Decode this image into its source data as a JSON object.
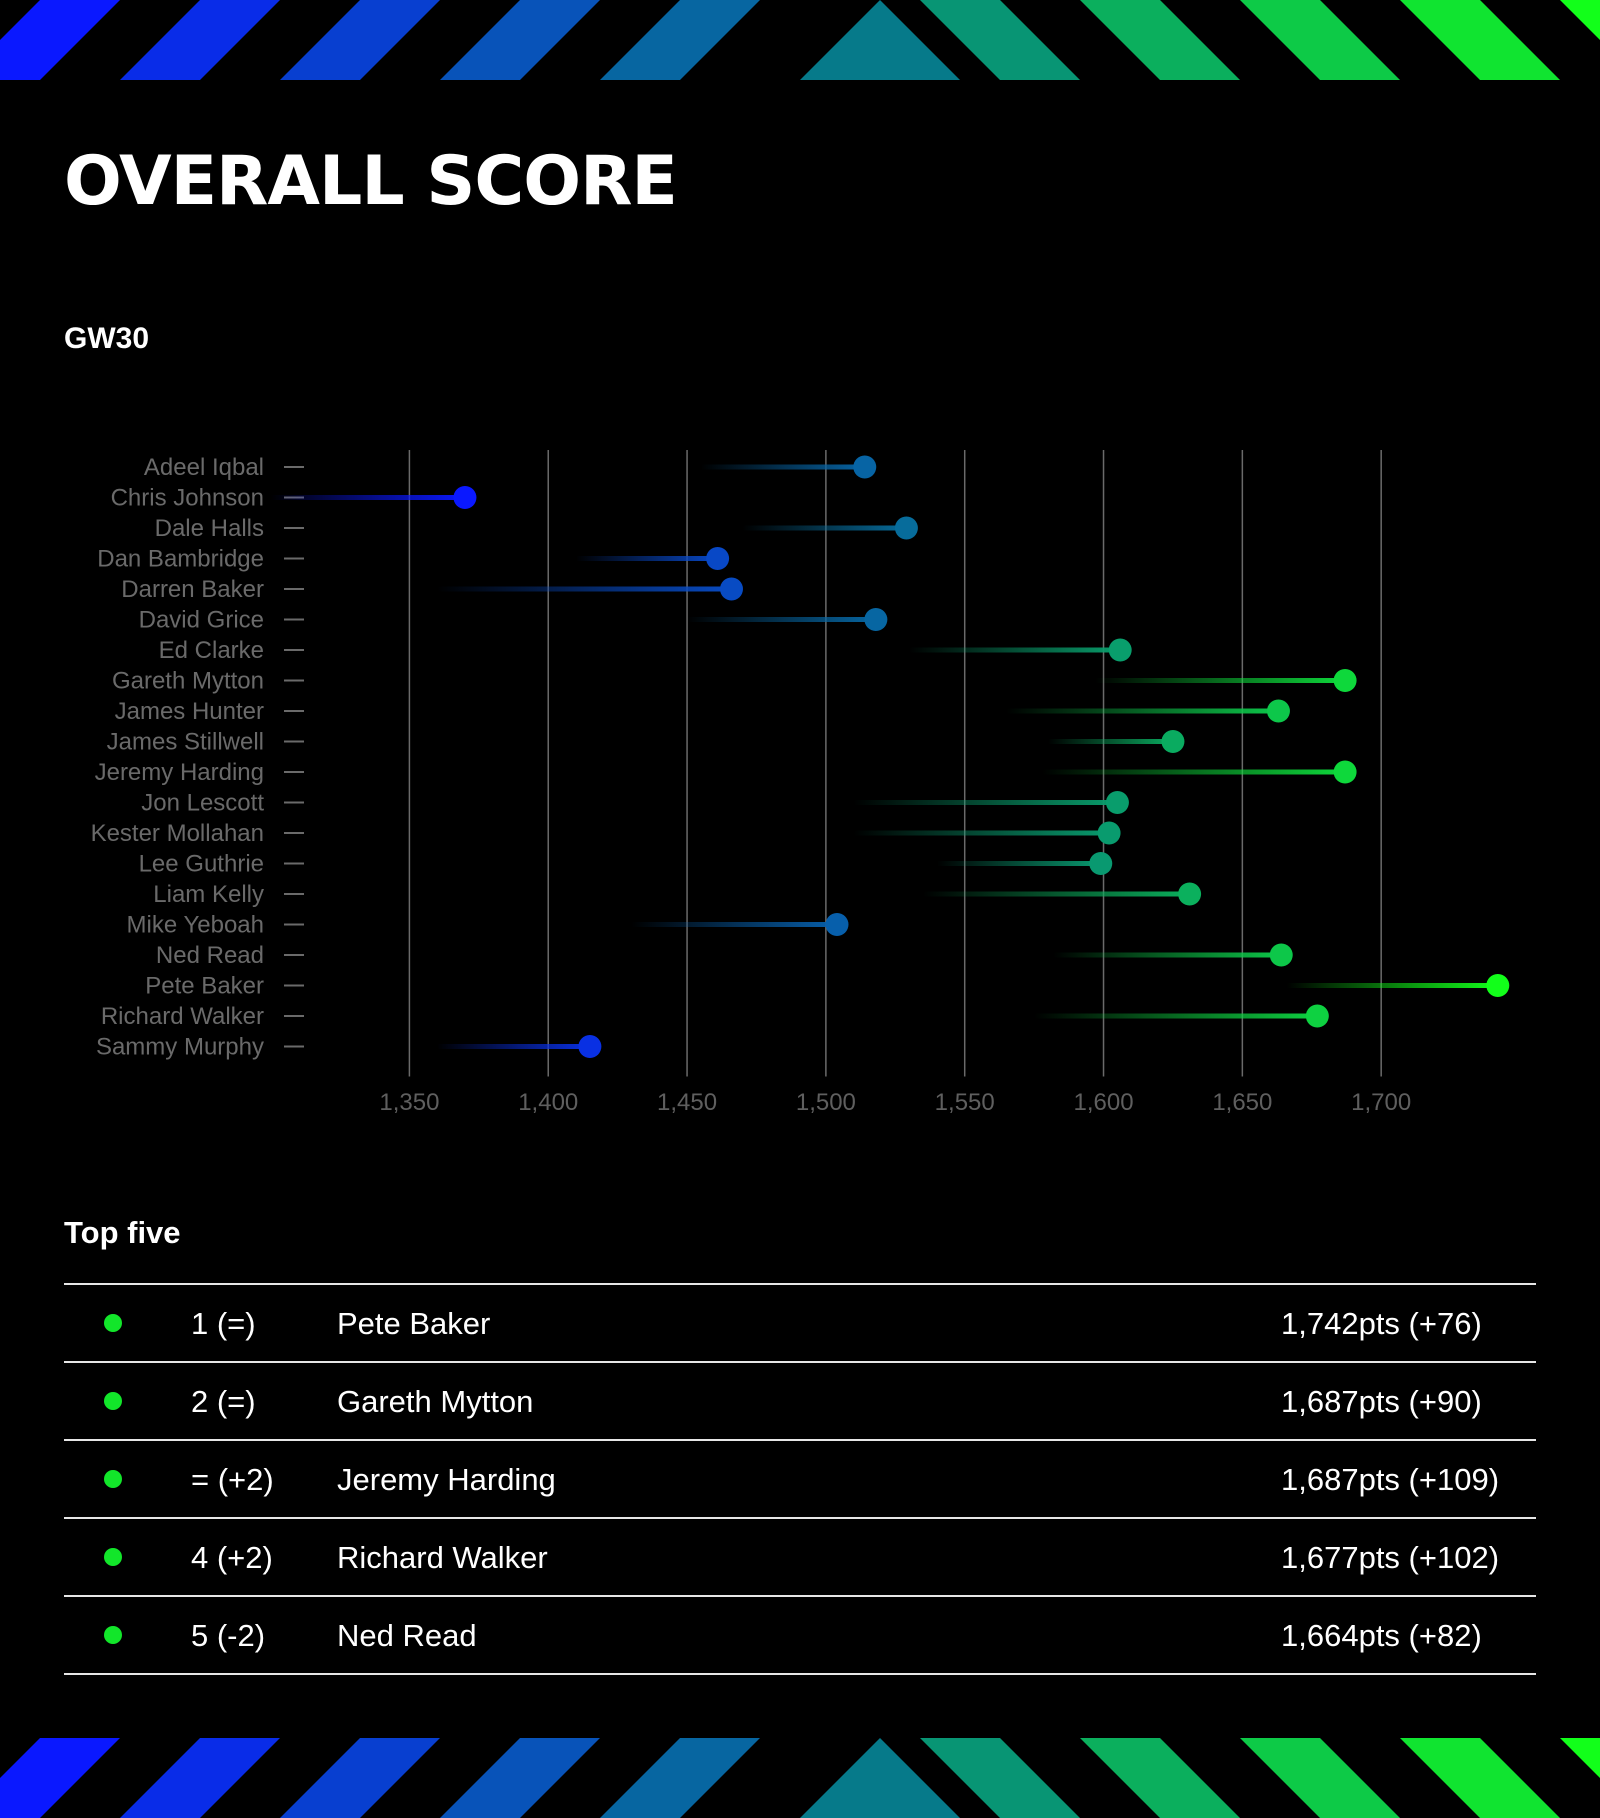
{
  "page": {
    "title": "OVERALL SCORE",
    "subtitle": "GW30"
  },
  "colors": {
    "background": "#000000",
    "gradient_start": "#0a18ff",
    "gradient_mid": "#067a8a",
    "gradient_end": "#12ff1a",
    "top_five_dot": "#12e62a"
  },
  "chart_data": {
    "type": "lollipop",
    "orientation": "horizontal",
    "categories": [
      "Adeel Iqbal",
      "Chris Johnson",
      "Dale Halls",
      "Dan Bambridge",
      "Darren Baker",
      "David Grice",
      "Ed Clarke",
      "Gareth Mytton",
      "James Hunter",
      "James Stillwell",
      "Jeremy Harding",
      "Jon Lescott",
      "Kester Mollahan",
      "Lee Guthrie",
      "Liam Kelly",
      "Mike Yeboah",
      "Ned Read",
      "Pete Baker",
      "Richard Walker",
      "Sammy Murphy"
    ],
    "values": [
      1514,
      1370,
      1529,
      1461,
      1466,
      1518,
      1606,
      1687,
      1663,
      1625,
      1687,
      1605,
      1602,
      1599,
      1631,
      1504,
      1664,
      1742,
      1677,
      1415
    ],
    "previous_values": [
      1455,
      1300,
      1470,
      1410,
      1360,
      1450,
      1530,
      1597,
      1565,
      1580,
      1578,
      1510,
      1510,
      1540,
      1535,
      1430,
      1582,
      1666,
      1575,
      1360
    ],
    "x_ticks": [
      "1,350",
      "1,400",
      "1,450",
      "1,500",
      "1,550",
      "1,600",
      "1,650",
      "1,700"
    ],
    "x_tick_values": [
      1350,
      1400,
      1450,
      1500,
      1550,
      1600,
      1650,
      1700
    ],
    "xlim": [
      1325,
      1750
    ],
    "grid": true
  },
  "top_five": {
    "title": "Top five",
    "rows": [
      {
        "rank": "1 (=)",
        "name": "Pete Baker",
        "points": "1,742pts (+76)"
      },
      {
        "rank": "2 (=)",
        "name": "Gareth Mytton",
        "points": "1,687pts (+90)"
      },
      {
        "rank": "= (+2)",
        "name": "Jeremy Harding",
        "points": "1,687pts (+109)"
      },
      {
        "rank": "4 (+2)",
        "name": "Richard Walker",
        "points": "1,677pts (+102)"
      },
      {
        "rank": "5 (-2)",
        "name": "Ned Read",
        "points": "1,664pts (+82)"
      }
    ]
  }
}
